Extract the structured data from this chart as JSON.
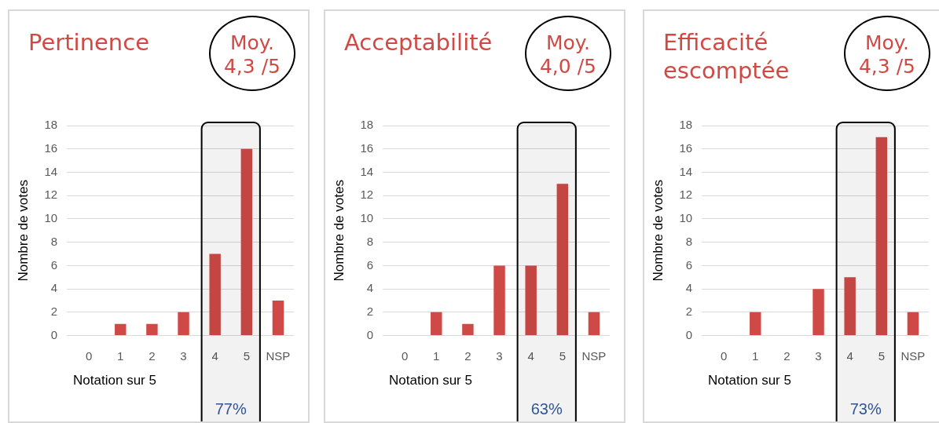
{
  "chart_data": [
    {
      "type": "bar",
      "title": "Pertinence",
      "xlabel": "Notation sur 5",
      "ylabel": "Nombre de votes",
      "categories": [
        "0",
        "1",
        "2",
        "3",
        "4",
        "5",
        "NSP"
      ],
      "values": [
        0,
        1,
        1,
        2,
        7,
        16,
        3
      ],
      "color": "#cf4a47",
      "ylim": [
        0,
        18
      ],
      "yticks": [
        0,
        2,
        4,
        6,
        8,
        10,
        12,
        14,
        16,
        18
      ],
      "grid": "y",
      "legend": false,
      "annotations": [
        "Moy. 4,3 /5"
      ],
      "bands": [
        {
          "axis": "x",
          "from": "4",
          "to": "5",
          "label": "77%",
          "color": "#000000"
        }
      ]
    },
    {
      "type": "bar",
      "title": "Acceptabilité",
      "xlabel": "Notation sur 5",
      "ylabel": "Nombre de votes",
      "categories": [
        "0",
        "1",
        "2",
        "3",
        "4",
        "5",
        "NSP"
      ],
      "values": [
        0,
        2,
        1,
        6,
        6,
        13,
        2
      ],
      "color": "#cf4a47",
      "ylim": [
        0,
        18
      ],
      "yticks": [
        0,
        2,
        4,
        6,
        8,
        10,
        12,
        14,
        16,
        18
      ],
      "grid": "y",
      "legend": false,
      "annotations": [
        "Moy. 4,0 /5"
      ],
      "bands": [
        {
          "axis": "x",
          "from": "4",
          "to": "5",
          "label": "63%",
          "color": "#000000"
        }
      ]
    },
    {
      "type": "bar",
      "title": "Efficacité escomptée",
      "xlabel": "Notation sur 5",
      "ylabel": "Nombre de votes",
      "categories": [
        "0",
        "1",
        "2",
        "3",
        "4",
        "5",
        "NSP"
      ],
      "values": [
        0,
        2,
        0,
        4,
        5,
        17,
        2
      ],
      "color": "#cf4a47",
      "ylim": [
        0,
        18
      ],
      "yticks": [
        0,
        2,
        4,
        6,
        8,
        10,
        12,
        14,
        16,
        18
      ],
      "grid": "y",
      "legend": false,
      "annotations": [
        "Moy. 4,3 /5"
      ],
      "bands": [
        {
          "axis": "x",
          "from": "4",
          "to": "5",
          "label": "73%",
          "color": "#000000"
        }
      ]
    }
  ]
}
